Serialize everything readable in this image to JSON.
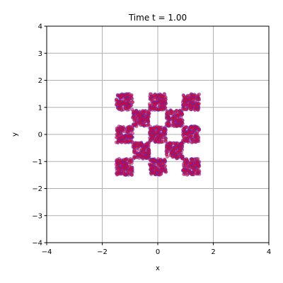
{
  "chart_data": {
    "type": "scatter",
    "title": "Time t = 1.00",
    "xlabel": "x",
    "ylabel": "y",
    "xlim": [
      -4,
      4
    ],
    "ylim": [
      -4,
      4
    ],
    "xticks": [
      -4,
      -2,
      0,
      2,
      4
    ],
    "yticks": [
      -4,
      -3,
      -2,
      -1,
      0,
      1,
      2,
      3,
      4
    ],
    "grid": true,
    "colors": {
      "fill": "#ff0000",
      "edge": "#3a2cdb",
      "grid": "#b0b0b0"
    },
    "series": [
      {
        "clusters": [
          {
            "center": [
              -1.2,
              1.2
            ],
            "half_width": 0.3
          },
          {
            "center": [
              0.0,
              1.2
            ],
            "half_width": 0.3
          },
          {
            "center": [
              1.2,
              1.2
            ],
            "half_width": 0.3
          },
          {
            "center": [
              -0.6,
              0.6
            ],
            "half_width": 0.3
          },
          {
            "center": [
              0.6,
              0.6
            ],
            "half_width": 0.3
          },
          {
            "center": [
              -1.2,
              0.0
            ],
            "half_width": 0.3
          },
          {
            "center": [
              0.0,
              0.0
            ],
            "half_width": 0.3
          },
          {
            "center": [
              1.2,
              0.0
            ],
            "half_width": 0.3
          },
          {
            "center": [
              -0.6,
              -0.6
            ],
            "half_width": 0.3
          },
          {
            "center": [
              0.6,
              -0.6
            ],
            "half_width": 0.3
          },
          {
            "center": [
              -1.2,
              -1.2
            ],
            "half_width": 0.3
          },
          {
            "center": [
              0.0,
              -1.2
            ],
            "half_width": 0.3
          },
          {
            "center": [
              1.2,
              -1.2
            ],
            "half_width": 0.3
          }
        ]
      }
    ]
  }
}
